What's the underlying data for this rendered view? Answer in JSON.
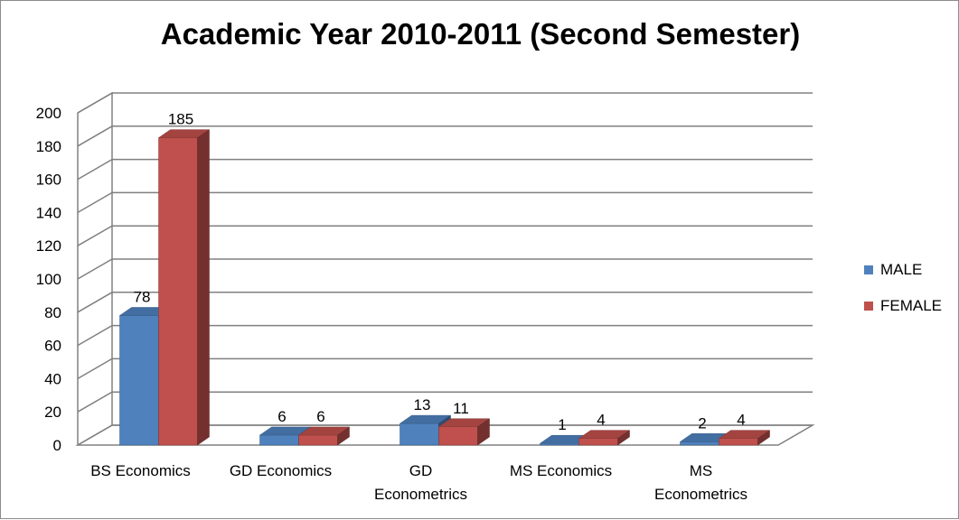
{
  "chart_data": {
    "type": "bar",
    "title": "Academic Year 2010-2011 (Second Semester)",
    "categories": [
      [
        "BS Economics"
      ],
      [
        "GD Economics"
      ],
      [
        "GD",
        "Econometrics"
      ],
      [
        "MS Economics"
      ],
      [
        "MS",
        "Econometrics"
      ]
    ],
    "series": [
      {
        "name": "MALE",
        "values": [
          78,
          6,
          13,
          1,
          2
        ],
        "color": "#4f81bd"
      },
      {
        "name": "FEMALE",
        "values": [
          185,
          6,
          11,
          4,
          4
        ],
        "color": "#c0504d"
      }
    ],
    "ylim": [
      0,
      200
    ],
    "yticks": [
      0,
      20,
      40,
      60,
      80,
      100,
      120,
      140,
      160,
      180,
      200
    ],
    "grid": true,
    "legend_position": "right",
    "style": "3d-clustered-column"
  }
}
